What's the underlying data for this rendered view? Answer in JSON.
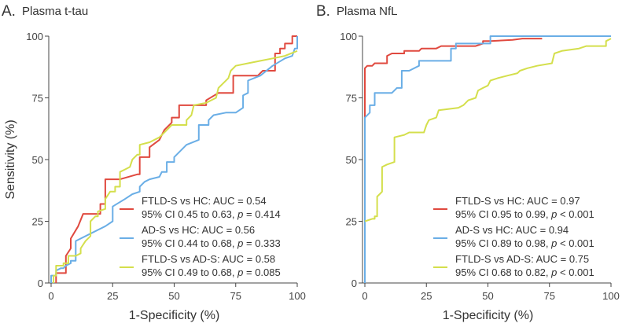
{
  "chart_data": [
    {
      "type": "line",
      "panel_letter": "A.",
      "title": "Plasma t-tau",
      "xlabel": "1-Specificity (%)",
      "ylabel": "Sensitivity (%)",
      "xlim": [
        0,
        100
      ],
      "ylim": [
        0,
        100
      ],
      "xticks": [
        "0",
        "25",
        "50",
        "75",
        "100"
      ],
      "yticks": [
        "0",
        "25",
        "50",
        "75",
        "100"
      ],
      "legend_position": "bottom-right",
      "series": [
        {
          "name": "FTLD-S vs HC: AUC = 0.54",
          "ci": "95% CI 0.45 to 0.63, ",
          "p": "= 0.414",
          "color": "#e0493f",
          "points": [
            [
              2,
              0
            ],
            [
              2,
              4
            ],
            [
              6,
              4
            ],
            [
              6,
              11
            ],
            [
              8,
              14
            ],
            [
              8,
              18
            ],
            [
              11,
              23
            ],
            [
              13,
              28
            ],
            [
              20,
              28
            ],
            [
              20,
              32
            ],
            [
              22,
              32
            ],
            [
              22,
              42
            ],
            [
              28,
              42
            ],
            [
              35,
              44
            ],
            [
              36,
              44
            ],
            [
              36,
              51
            ],
            [
              40,
              51
            ],
            [
              40,
              55
            ],
            [
              44,
              58
            ],
            [
              46,
              62
            ],
            [
              49,
              65
            ],
            [
              49,
              67
            ],
            [
              52,
              67
            ],
            [
              52,
              72
            ],
            [
              63,
              72
            ],
            [
              63,
              74
            ],
            [
              68,
              77
            ],
            [
              74,
              77
            ],
            [
              74,
              84
            ],
            [
              84,
              84
            ],
            [
              86,
              86
            ],
            [
              91,
              86
            ],
            [
              91,
              93
            ],
            [
              93,
              93
            ],
            [
              93,
              95
            ],
            [
              95,
              95
            ],
            [
              95,
              97
            ],
            [
              98,
              97
            ],
            [
              98,
              100
            ],
            [
              100,
              100
            ]
          ]
        },
        {
          "name": "AD-S vs HC: AUC = 0.56",
          "ci": "95% CI 0.44 to 0.68, ",
          "p": "= 0.333",
          "color": "#6aaee6",
          "points": [
            [
              0,
              0
            ],
            [
              0,
              3
            ],
            [
              2,
              3
            ],
            [
              2,
              5
            ],
            [
              4,
              6
            ],
            [
              5,
              6
            ],
            [
              6,
              7
            ],
            [
              8,
              8
            ],
            [
              8,
              9
            ],
            [
              10,
              9
            ],
            [
              10,
              17
            ],
            [
              16,
              20
            ],
            [
              22,
              23
            ],
            [
              25,
              25
            ],
            [
              25,
              31
            ],
            [
              30,
              34
            ],
            [
              33,
              36
            ],
            [
              36,
              37
            ],
            [
              36,
              39
            ],
            [
              38,
              41
            ],
            [
              40,
              42
            ],
            [
              44,
              43
            ],
            [
              45,
              45
            ],
            [
              47,
              45
            ],
            [
              47,
              49
            ],
            [
              50,
              49
            ],
            [
              50,
              51
            ],
            [
              55,
              56
            ],
            [
              60,
              58
            ],
            [
              60,
              64
            ],
            [
              64,
              64
            ],
            [
              64,
              66
            ],
            [
              66,
              68
            ],
            [
              71,
              69
            ],
            [
              75,
              69
            ],
            [
              78,
              71
            ],
            [
              78,
              76
            ],
            [
              80,
              77
            ],
            [
              80,
              82
            ],
            [
              85,
              84
            ],
            [
              90,
              88
            ],
            [
              95,
              91
            ],
            [
              98,
              92
            ],
            [
              99,
              95
            ],
            [
              100,
              95
            ],
            [
              100,
              100
            ]
          ]
        },
        {
          "name": "FTLD-S vs AD-S: AUC = 0.58",
          "ci": "95% CI 0.49 to 0.68, ",
          "p": "= 0.085",
          "color": "#d4df4c",
          "points": [
            [
              1,
              0
            ],
            [
              1,
              3
            ],
            [
              2,
              3
            ],
            [
              2,
              7
            ],
            [
              5,
              7
            ],
            [
              5,
              8
            ],
            [
              7,
              8
            ],
            [
              7,
              11
            ],
            [
              10,
              11
            ],
            [
              12,
              12
            ],
            [
              12,
              14
            ],
            [
              14,
              17
            ],
            [
              16,
              19
            ],
            [
              16,
              25
            ],
            [
              18,
              27
            ],
            [
              19,
              27
            ],
            [
              19,
              29
            ],
            [
              22,
              30
            ],
            [
              22,
              34
            ],
            [
              24,
              37
            ],
            [
              26,
              37
            ],
            [
              26,
              39
            ],
            [
              28,
              39
            ],
            [
              28,
              45
            ],
            [
              30,
              46
            ],
            [
              32,
              47
            ],
            [
              33,
              50
            ],
            [
              35,
              52
            ],
            [
              36,
              52
            ],
            [
              36,
              56
            ],
            [
              40,
              57
            ],
            [
              44,
              59
            ],
            [
              46,
              61
            ],
            [
              49,
              64
            ],
            [
              55,
              64
            ],
            [
              55,
              66
            ],
            [
              57,
              68
            ],
            [
              58,
              72
            ],
            [
              63,
              73
            ],
            [
              65,
              74
            ],
            [
              67,
              75
            ],
            [
              68,
              79
            ],
            [
              70,
              81
            ],
            [
              72,
              83
            ],
            [
              73,
              86
            ],
            [
              75,
              88
            ],
            [
              80,
              89
            ],
            [
              85,
              90
            ],
            [
              90,
              91
            ],
            [
              95,
              92
            ],
            [
              100,
              94
            ]
          ]
        }
      ]
    },
    {
      "type": "line",
      "panel_letter": "B.",
      "title": "Plasma NfL",
      "xlabel": "1-Specificity (%)",
      "ylabel": "",
      "xlim": [
        0,
        100
      ],
      "ylim": [
        0,
        100
      ],
      "xticks": [
        "0",
        "25",
        "50",
        "75",
        "100"
      ],
      "yticks": [
        "0",
        "25",
        "50",
        "75",
        "100"
      ],
      "legend_position": "bottom-right",
      "series": [
        {
          "name": "FTLD-S vs HC: AUC = 0.97",
          "ci": "95% CI 0.95 to 0.99, ",
          "p": "< 0.001",
          "color": "#e0493f",
          "points": [
            [
              0,
              67
            ],
            [
              0,
              87
            ],
            [
              1,
              88
            ],
            [
              3,
              88
            ],
            [
              4,
              89
            ],
            [
              9,
              89
            ],
            [
              9,
              92
            ],
            [
              11,
              93
            ],
            [
              16,
              93
            ],
            [
              16,
              94
            ],
            [
              22,
              94
            ],
            [
              23,
              95
            ],
            [
              29,
              95
            ],
            [
              31,
              96
            ],
            [
              45,
              96
            ],
            [
              48,
              97
            ],
            [
              48,
              98
            ],
            [
              51,
              98
            ],
            [
              60,
              98.5
            ],
            [
              64,
              99
            ],
            [
              72,
              99
            ]
          ]
        },
        {
          "name": "AD-S vs HC: AUC = 0.94",
          "ci": "95% CI 0.89 to 0.98, ",
          "p": "< 0.001",
          "color": "#6aaee6",
          "points": [
            [
              0,
              0
            ],
            [
              0,
              67
            ],
            [
              2,
              69
            ],
            [
              2,
              72
            ],
            [
              4,
              72
            ],
            [
              4,
              77
            ],
            [
              11,
              77
            ],
            [
              13,
              79
            ],
            [
              15,
              79
            ],
            [
              15,
              86
            ],
            [
              18,
              86
            ],
            [
              22,
              88
            ],
            [
              22,
              90
            ],
            [
              35,
              90
            ],
            [
              35,
              95
            ],
            [
              37,
              95
            ],
            [
              37,
              97
            ],
            [
              51,
              97
            ],
            [
              51,
              100
            ],
            [
              100,
              100
            ]
          ]
        },
        {
          "name": "FTLD-S vs AD-S: AUC = 0.75",
          "ci": "95% CI 0.68 to 0.82, ",
          "p": "< 0.001",
          "color": "#d4df4c",
          "points": [
            [
              0,
              25
            ],
            [
              3,
              26
            ],
            [
              4,
              26
            ],
            [
              4,
              27
            ],
            [
              5,
              27
            ],
            [
              5,
              35
            ],
            [
              6,
              36
            ],
            [
              7,
              37
            ],
            [
              7,
              47
            ],
            [
              9,
              48
            ],
            [
              12,
              49
            ],
            [
              12,
              59
            ],
            [
              16,
              60
            ],
            [
              18,
              61
            ],
            [
              24,
              61
            ],
            [
              25,
              64
            ],
            [
              26,
              66
            ],
            [
              29,
              67
            ],
            [
              30,
              70
            ],
            [
              38,
              71
            ],
            [
              40,
              72
            ],
            [
              42,
              74
            ],
            [
              45,
              75
            ],
            [
              46,
              78
            ],
            [
              48,
              79
            ],
            [
              50,
              80
            ],
            [
              51,
              82
            ],
            [
              54,
              83
            ],
            [
              58,
              84
            ],
            [
              62,
              85
            ],
            [
              63,
              86
            ],
            [
              66,
              87
            ],
            [
              70,
              88
            ],
            [
              76,
              89
            ],
            [
              77,
              93
            ],
            [
              80,
              94
            ],
            [
              87,
              95
            ],
            [
              90,
              96
            ],
            [
              98,
              96
            ],
            [
              98,
              98
            ],
            [
              100,
              99
            ]
          ]
        }
      ]
    }
  ],
  "p_label": "p"
}
